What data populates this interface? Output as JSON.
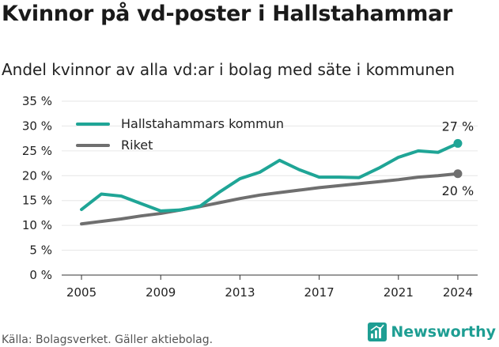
{
  "title": "Kvinnor på vd-poster i Hallstahammar",
  "subtitle": "Andel kvinnor av alla vd:ar i bolag med säte i kommunen",
  "source": "Källa: Bolagsverket. Gäller aktiebolag.",
  "brand": {
    "name": "Newsworthy",
    "icon": "newsworthy-logo-icon",
    "color": "#1e9e93"
  },
  "chart_data": {
    "type": "line",
    "title": "Kvinnor på vd-poster i Hallstahammar",
    "subtitle": "Andel kvinnor av alla vd:ar i bolag med säte i kommunen",
    "ylim": [
      0,
      35
    ],
    "xlim": [
      2004,
      2025
    ],
    "y_ticks": [
      0,
      5,
      10,
      15,
      20,
      25,
      30,
      35
    ],
    "y_tick_labels": [
      "0 %",
      "5 %",
      "10 %",
      "15 %",
      "20 %",
      "25 %",
      "30 %",
      "35 %"
    ],
    "x_ticks": [
      2005,
      2009,
      2013,
      2017,
      2021,
      2024
    ],
    "x_tick_labels": [
      "2005",
      "2009",
      "2013",
      "2017",
      "2021",
      "2024"
    ],
    "grid": "horizontal",
    "legend_position": "top-left",
    "series": [
      {
        "name": "Hallstahammars kommun",
        "color": "#1fa596",
        "x": [
          2005,
          2006,
          2007,
          2008,
          2009,
          2010,
          2011,
          2012,
          2013,
          2014,
          2015,
          2016,
          2017,
          2018,
          2019,
          2020,
          2021,
          2022,
          2023,
          2024
        ],
        "values": [
          13.2,
          16.3,
          15.9,
          14.4,
          12.9,
          13.1,
          13.9,
          16.8,
          19.4,
          20.7,
          23.1,
          21.2,
          19.7,
          19.7,
          19.6,
          21.5,
          23.7,
          25.0,
          24.7,
          26.5
        ],
        "end_label": "27 %"
      },
      {
        "name": "Riket",
        "color": "#6f6f6f",
        "x": [
          2005,
          2006,
          2007,
          2008,
          2009,
          2010,
          2011,
          2012,
          2013,
          2014,
          2015,
          2016,
          2017,
          2018,
          2019,
          2020,
          2021,
          2022,
          2023,
          2024
        ],
        "values": [
          10.3,
          10.8,
          11.3,
          11.9,
          12.4,
          13.1,
          13.8,
          14.6,
          15.4,
          16.1,
          16.6,
          17.1,
          17.6,
          18.0,
          18.4,
          18.8,
          19.2,
          19.7,
          20.0,
          20.4
        ],
        "end_label": "20 %"
      }
    ]
  }
}
